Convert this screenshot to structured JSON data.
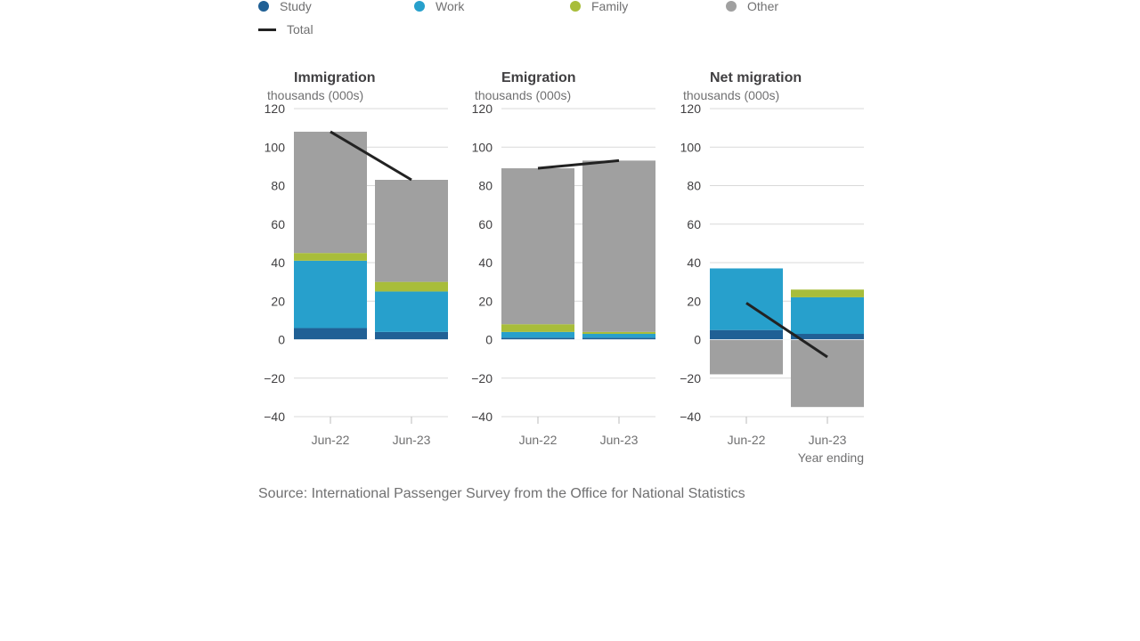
{
  "legend": {
    "study": "Study",
    "work": "Work",
    "family": "Family",
    "other": "Other",
    "total": "Total"
  },
  "colors": {
    "study": "#206095",
    "work": "#27a0cc",
    "family": "#a8bd3a",
    "other": "#a0a0a0",
    "total": "#222222",
    "grid": "#d9d9d9",
    "text": "#414042",
    "muted": "#707071"
  },
  "x_axis_title": "Year ending",
  "source": "Source: International Passenger Survey from the Office for National Statistics",
  "chart_data": [
    {
      "type": "bar",
      "stacked": true,
      "title": "Immigration",
      "ylabel": "thousands (000s)",
      "categories": [
        "Jun-22",
        "Jun-23"
      ],
      "ylim": [
        -40,
        120
      ],
      "yticks": [
        -40,
        -20,
        0,
        20,
        40,
        60,
        80,
        100,
        120
      ],
      "series": [
        {
          "name": "Study",
          "key": "study",
          "values": [
            6,
            4
          ]
        },
        {
          "name": "Work",
          "key": "work",
          "values": [
            35,
            21
          ]
        },
        {
          "name": "Family",
          "key": "family",
          "values": [
            4,
            5
          ]
        },
        {
          "name": "Other",
          "key": "other",
          "values": [
            63,
            53
          ]
        }
      ],
      "total": {
        "name": "Total",
        "values": [
          108,
          83
        ]
      },
      "grid": true
    },
    {
      "type": "bar",
      "stacked": true,
      "title": "Emigration",
      "ylabel": "thousands (000s)",
      "categories": [
        "Jun-22",
        "Jun-23"
      ],
      "ylim": [
        -40,
        120
      ],
      "yticks": [
        -40,
        -20,
        0,
        20,
        40,
        60,
        80,
        100,
        120
      ],
      "series": [
        {
          "name": "Study",
          "key": "study",
          "values": [
            1,
            1
          ]
        },
        {
          "name": "Work",
          "key": "work",
          "values": [
            3,
            2
          ]
        },
        {
          "name": "Family",
          "key": "family",
          "values": [
            4,
            1
          ]
        },
        {
          "name": "Other",
          "key": "other",
          "values": [
            81,
            89
          ]
        }
      ],
      "total": {
        "name": "Total",
        "values": [
          89,
          93
        ]
      },
      "grid": true
    },
    {
      "type": "bar",
      "stacked": true,
      "title": "Net migration",
      "ylabel": "thousands (000s)",
      "categories": [
        "Jun-22",
        "Jun-23"
      ],
      "ylim": [
        -40,
        120
      ],
      "yticks": [
        -40,
        -20,
        0,
        20,
        40,
        60,
        80,
        100,
        120
      ],
      "series": [
        {
          "name": "Study",
          "key": "study",
          "values": [
            5,
            3
          ]
        },
        {
          "name": "Work",
          "key": "work",
          "values": [
            32,
            19
          ]
        },
        {
          "name": "Family",
          "key": "family",
          "values": [
            0,
            4
          ]
        },
        {
          "name": "Other",
          "key": "other",
          "values": [
            -18,
            -35
          ]
        }
      ],
      "total": {
        "name": "Total",
        "values": [
          19,
          -9
        ]
      },
      "grid": true
    }
  ]
}
